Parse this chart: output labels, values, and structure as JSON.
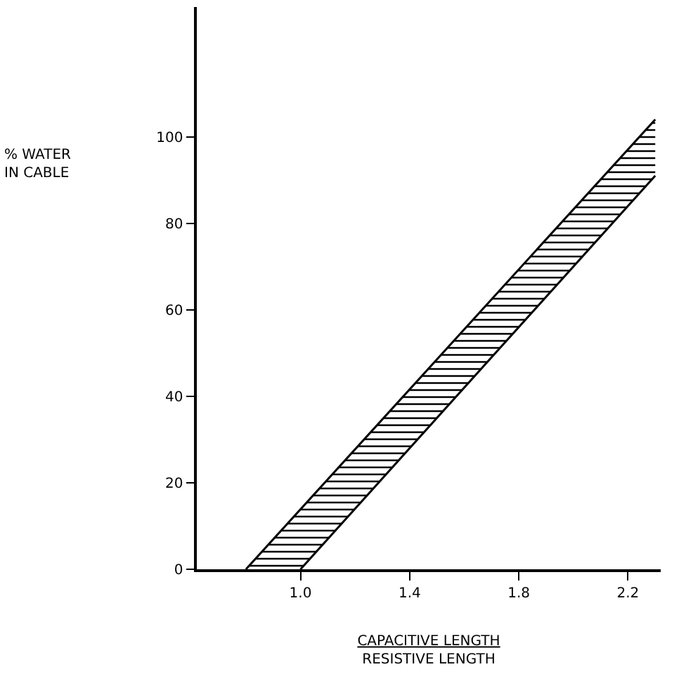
{
  "chart_data": {
    "type": "line",
    "xlabel": "CAPACITIVE LENGTH\nRESISTIVE LENGTH",
    "annotations": [
      "% WATER\nIN CABLE"
    ],
    "series": [
      {
        "color": "#000000",
        "x": [
          0.8,
          2.3
        ],
        "values": [
          0,
          104
        ]
      },
      {
        "color": "#000000",
        "x": [
          1.0,
          2.3
        ],
        "values": [
          0,
          91
        ]
      },
      {
        "color": "#000000",
        "x": [
          0.8,
          1.0,
          2.3
        ],
        "values": [
          null,
          null,
          null
        ],
        "lower": [
          0,
          0,
          91
        ],
        "upper": [
          0,
          14,
          104
        ]
      }
    ],
    "xlim": [
      0.62,
      2.32
    ],
    "xticks": [
      {
        "value": 1,
        "label": "1.0"
      },
      1.4,
      1.8,
      2.2
    ],
    "ylim": [
      0,
      130
    ],
    "yticks": [
      0,
      20,
      40,
      60,
      80,
      100
    ],
    "grid": false,
    "marker": "none"
  }
}
